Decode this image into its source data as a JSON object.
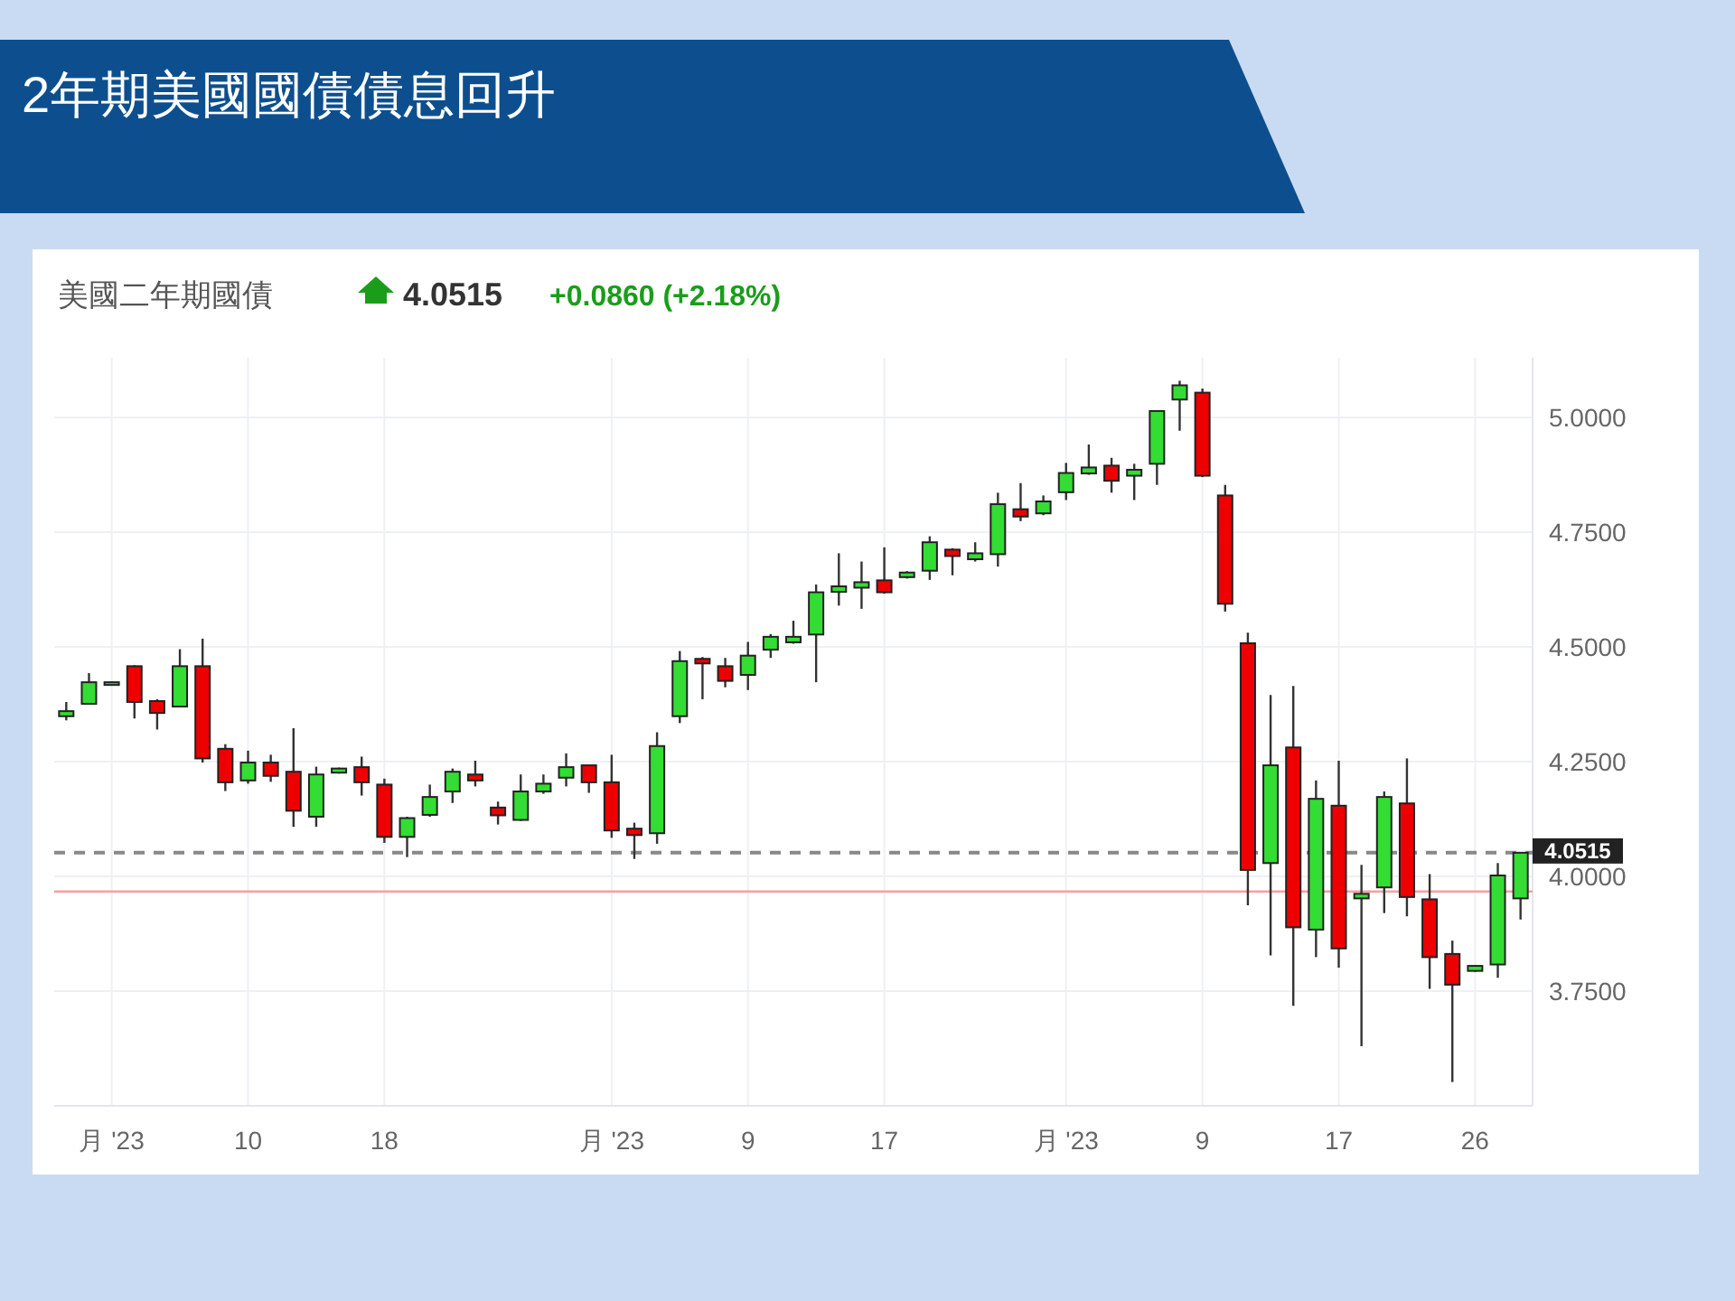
{
  "chart_data": {
    "type": "candlestick",
    "title": "2年期美國國債債息回升",
    "subtitle": "美國二年期國債",
    "annotations": [
      "4.0515",
      "+0.0860 (+2.18%)"
    ],
    "categories": [
      null,
      null,
      "月 '23",
      null,
      null,
      null,
      null,
      null,
      "10",
      null,
      null,
      null,
      null,
      null,
      "18",
      null,
      null,
      null,
      null,
      null,
      null,
      null,
      null,
      null,
      "月 '23",
      null,
      null,
      null,
      null,
      null,
      "9",
      null,
      null,
      null,
      null,
      null,
      "17",
      null,
      null,
      null,
      null,
      null,
      null,
      null,
      "月 '23",
      null,
      null,
      null,
      null,
      null,
      "9",
      null,
      null,
      null,
      null,
      null,
      "17",
      null,
      null,
      null,
      null,
      null,
      "26",
      null,
      null
    ],
    "ohlc": [
      [
        4.349,
        4.38,
        4.34,
        4.36
      ],
      [
        4.376,
        4.443,
        4.376,
        4.423
      ],
      [
        4.423,
        4.425,
        4.42,
        4.423
      ],
      [
        4.458,
        4.46,
        4.344,
        4.38
      ],
      [
        4.382,
        4.386,
        4.32,
        4.356
      ],
      [
        4.37,
        4.495,
        4.37,
        4.458
      ],
      [
        4.458,
        4.518,
        4.248,
        4.257
      ],
      [
        4.278,
        4.288,
        4.186,
        4.205
      ],
      [
        4.209,
        4.274,
        4.202,
        4.248
      ],
      [
        4.248,
        4.265,
        4.206,
        4.219
      ],
      [
        4.228,
        4.323,
        4.108,
        4.143
      ],
      [
        4.13,
        4.239,
        4.108,
        4.222
      ],
      [
        4.226,
        4.237,
        4.224,
        4.235
      ],
      [
        4.238,
        4.261,
        4.176,
        4.205
      ],
      [
        4.2,
        4.213,
        4.073,
        4.086
      ],
      [
        4.086,
        4.13,
        4.042,
        4.127
      ],
      [
        4.134,
        4.2,
        4.13,
        4.173
      ],
      [
        4.185,
        4.235,
        4.16,
        4.228
      ],
      [
        4.222,
        4.252,
        4.196,
        4.209
      ],
      [
        4.15,
        4.163,
        4.113,
        4.133
      ],
      [
        4.123,
        4.222,
        4.121,
        4.185
      ],
      [
        4.185,
        4.222,
        4.18,
        4.202
      ],
      [
        4.215,
        4.268,
        4.196,
        4.238
      ],
      [
        4.242,
        4.242,
        4.182,
        4.205
      ],
      [
        4.205,
        4.265,
        4.084,
        4.1
      ],
      [
        4.104,
        4.117,
        4.038,
        4.09
      ],
      [
        4.094,
        4.314,
        4.071,
        4.284
      ],
      [
        4.349,
        4.491,
        4.334,
        4.469
      ],
      [
        4.474,
        4.478,
        4.386,
        4.464
      ],
      [
        4.458,
        4.476,
        4.412,
        4.426
      ],
      [
        4.439,
        4.511,
        4.406,
        4.481
      ],
      [
        4.494,
        4.528,
        4.476,
        4.522
      ],
      [
        4.51,
        4.557,
        4.507,
        4.522
      ],
      [
        4.527,
        4.636,
        4.423,
        4.619
      ],
      [
        4.62,
        4.704,
        4.59,
        4.632
      ],
      [
        4.629,
        4.686,
        4.583,
        4.641
      ],
      [
        4.645,
        4.717,
        4.616,
        4.619
      ],
      [
        4.652,
        4.665,
        4.649,
        4.662
      ],
      [
        4.666,
        4.741,
        4.646,
        4.728
      ],
      [
        4.712,
        4.715,
        4.656,
        4.698
      ],
      [
        4.691,
        4.728,
        4.686,
        4.704
      ],
      [
        4.702,
        4.836,
        4.675,
        4.811
      ],
      [
        4.8,
        4.857,
        4.774,
        4.784
      ],
      [
        4.791,
        4.83,
        4.787,
        4.817
      ],
      [
        4.837,
        4.901,
        4.82,
        4.879
      ],
      [
        4.878,
        4.941,
        4.875,
        4.891
      ],
      [
        4.895,
        4.912,
        4.836,
        4.862
      ],
      [
        4.873,
        4.899,
        4.82,
        4.886
      ],
      [
        4.899,
        5.014,
        4.853,
        5.014
      ],
      [
        5.039,
        5.08,
        4.971,
        5.07
      ],
      [
        5.054,
        5.063,
        4.87,
        4.873
      ],
      [
        4.83,
        4.853,
        4.577,
        4.594
      ],
      [
        4.508,
        4.531,
        3.937,
        4.014
      ],
      [
        4.029,
        4.395,
        3.828,
        4.242
      ],
      [
        4.281,
        4.415,
        3.718,
        3.889
      ],
      [
        3.884,
        4.209,
        3.824,
        4.169
      ],
      [
        4.154,
        4.252,
        3.801,
        3.843
      ],
      [
        3.952,
        4.025,
        3.63,
        3.962
      ],
      [
        3.976,
        4.185,
        3.92,
        4.173
      ],
      [
        4.159,
        4.257,
        3.913,
        3.955
      ],
      [
        3.95,
        4.005,
        3.755,
        3.824
      ],
      [
        3.831,
        3.86,
        3.552,
        3.764
      ],
      [
        3.794,
        3.807,
        3.792,
        3.805
      ],
      [
        3.808,
        4.029,
        3.779,
        4.002
      ],
      [
        3.952,
        4.052,
        3.906,
        4.0515
      ]
    ],
    "colors": [
      "#33dd33",
      "#33dd33",
      "#33dd33",
      "#ee0000",
      "#ee0000",
      "#33dd33",
      "#ee0000",
      "#ee0000",
      "#33dd33",
      "#ee0000",
      "#ee0000",
      "#33dd33",
      "#33dd33",
      "#ee0000",
      "#ee0000",
      "#33dd33",
      "#33dd33",
      "#33dd33",
      "#ee0000",
      "#ee0000",
      "#33dd33",
      "#33dd33",
      "#33dd33",
      "#ee0000",
      "#ee0000",
      "#ee0000",
      "#33dd33",
      "#33dd33",
      "#ee0000",
      "#ee0000",
      "#33dd33",
      "#33dd33",
      "#33dd33",
      "#33dd33",
      "#33dd33",
      "#33dd33",
      "#ee0000",
      "#33dd33",
      "#33dd33",
      "#ee0000",
      "#33dd33",
      "#33dd33",
      "#ee0000",
      "#33dd33",
      "#33dd33",
      "#33dd33",
      "#ee0000",
      "#33dd33",
      "#33dd33",
      "#33dd33",
      "#ee0000",
      "#ee0000",
      "#ee0000",
      "#33dd33",
      "#ee0000",
      "#33dd33",
      "#ee0000",
      "#33dd33",
      "#33dd33",
      "#ee0000",
      "#ee0000",
      "#ee0000",
      "#33dd33",
      "#33dd33",
      "#33dd33"
    ],
    "ylim": [
      3.5,
      5.13
    ],
    "yticks": [
      {
        "value": 3.75,
        "label": "3.7500"
      },
      {
        "value": 4,
        "label": "4.0000"
      },
      {
        "value": 4.25,
        "label": "4.2500"
      },
      {
        "value": 4.5,
        "label": "4.5000"
      },
      {
        "value": 4.75,
        "label": "4.7500"
      },
      {
        "value": 5,
        "label": "5.0000"
      }
    ],
    "grid": true,
    "ref_lines": [
      {
        "axis": "y",
        "value": 4.0515,
        "label": "4.0515",
        "color": "#888888",
        "line_style": "dashed"
      },
      {
        "axis": "y",
        "value": 3.967,
        "color": "#f5a0a0",
        "line_style": "solid"
      }
    ]
  }
}
